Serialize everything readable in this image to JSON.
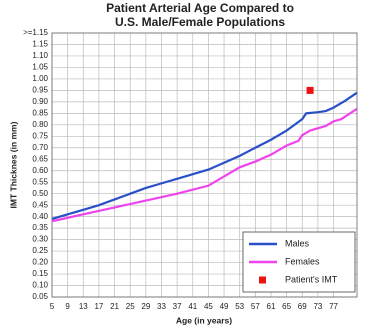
{
  "chart_data": {
    "type": "line",
    "title": [
      "Patient Arterial Age Compared to",
      "U.S. Male/Female Populations"
    ],
    "x_label": "Age (in years)",
    "y_label": "IMT Thicknes (in mm)",
    "xlim": [
      5,
      83
    ],
    "xticks": [
      5,
      9,
      13,
      17,
      21,
      25,
      29,
      33,
      37,
      41,
      45,
      49,
      53,
      57,
      61,
      65,
      69,
      73,
      77
    ],
    "ylim": [
      0.05,
      1.2
    ],
    "yticks": [
      0.05,
      {
        "value": 0.1,
        "label": "0.10"
      },
      0.15,
      {
        "value": 0.2,
        "label": "0.20"
      },
      0.25,
      {
        "value": 0.3,
        "label": "0.30"
      },
      0.35,
      {
        "value": 0.4,
        "label": "0.40"
      },
      0.45,
      {
        "value": 0.5,
        "label": "0.50"
      },
      0.55,
      {
        "value": 0.6,
        "label": "0.60"
      },
      0.65,
      {
        "value": 0.7,
        "label": "0.70"
      },
      0.75,
      {
        "value": 0.8,
        "label": "0.80"
      },
      0.85,
      {
        "value": 0.9,
        "label": "0.90"
      },
      0.95,
      {
        "value": 1,
        "label": "1.00"
      },
      1.05,
      {
        "value": 1.1,
        "label": "1.10"
      },
      1.15,
      {
        "value": 1.2,
        "label": ">=1.15"
      }
    ],
    "grid": true,
    "legend": "lower right",
    "series": [
      {
        "name": "Males",
        "color": "#2a50c8",
        "mark": "line",
        "x": [
          5,
          9,
          13,
          17,
          21,
          25,
          29,
          33,
          37,
          41,
          45,
          49,
          53,
          57,
          61,
          65,
          69,
          70,
          73,
          75,
          77,
          80,
          83
        ],
        "values": [
          0.39,
          0.41,
          0.43,
          0.45,
          0.475,
          0.5,
          0.525,
          0.545,
          0.565,
          0.585,
          0.605,
          0.635,
          0.665,
          0.7,
          0.735,
          0.775,
          0.825,
          0.85,
          0.855,
          0.86,
          0.875,
          0.905,
          0.94
        ]
      },
      {
        "name": "Females",
        "color": "#ee44ee",
        "mark": "line",
        "x": [
          5,
          13,
          21,
          29,
          37,
          45,
          49,
          53,
          57,
          61,
          65,
          68,
          69,
          71,
          75,
          77,
          79,
          83
        ],
        "values": [
          0.38,
          0.41,
          0.44,
          0.47,
          0.5,
          0.535,
          0.575,
          0.615,
          0.64,
          0.67,
          0.71,
          0.73,
          0.755,
          0.775,
          0.795,
          0.815,
          0.825,
          0.87
        ]
      },
      {
        "name": "Patient's IMT",
        "color": "#ee1111",
        "mark": "square",
        "x": [
          71
        ],
        "values": [
          0.95
        ]
      }
    ]
  }
}
